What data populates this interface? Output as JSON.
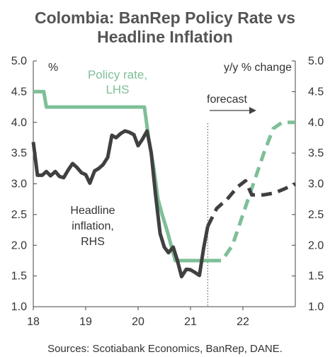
{
  "title_line1": "Colombia: BanRep Policy Rate vs",
  "title_line2": "Headline Inflation",
  "left_unit": "%",
  "right_unit": "y/y % change",
  "policy_label_line1": "Policy rate,",
  "policy_label_line2": "LHS",
  "inflation_label_line1": "Headline",
  "inflation_label_line2": "inflation,",
  "inflation_label_line3": "RHS",
  "forecast_label": "forecast",
  "source": "Sources: Scotiabank Economics, BanRep, DANE.",
  "colors": {
    "policy": "#7ebf98",
    "inflation": "#404040"
  },
  "chart_data": {
    "type": "line",
    "x_ticks": [
      "18",
      "19",
      "20",
      "21",
      "22"
    ],
    "x_tick_values": [
      2018,
      2019,
      2020,
      2021,
      2022
    ],
    "xlim": [
      2018,
      2023
    ],
    "y_left_ticks": [
      "1.0",
      "1.5",
      "2.0",
      "2.5",
      "3.0",
      "3.5",
      "4.0",
      "4.5",
      "5.0"
    ],
    "y_right_ticks": [
      "1.0",
      "1.5",
      "2.0",
      "2.5",
      "3.0",
      "3.5",
      "4.0",
      "4.5",
      "5.0"
    ],
    "ylim_left": [
      1.0,
      5.0
    ],
    "ylim_right": [
      1.0,
      5.0
    ],
    "forecast_start": 2021.33,
    "series": [
      {
        "name": "Policy rate, LHS",
        "axis": "left",
        "style": "solid",
        "x": [
          2018.0,
          2018.2,
          2018.25,
          2020.12,
          2020.2,
          2020.3,
          2020.38,
          2020.46,
          2020.55,
          2020.63,
          2020.71,
          2021.38
        ],
        "y": [
          4.5,
          4.5,
          4.25,
          4.25,
          3.75,
          3.25,
          2.75,
          2.5,
          2.25,
          2.0,
          1.75,
          1.75
        ]
      },
      {
        "name": "Policy rate forecast",
        "axis": "left",
        "style": "dashed",
        "x": [
          2021.38,
          2021.6,
          2021.8,
          2022.0,
          2022.2,
          2022.4,
          2022.58,
          2022.75,
          2023.0
        ],
        "y": [
          1.75,
          1.75,
          2.0,
          2.5,
          3.0,
          3.5,
          3.9,
          4.0,
          4.0
        ]
      },
      {
        "name": "Headline inflation, RHS",
        "axis": "right",
        "style": "solid",
        "x": [
          2018.0,
          2018.08,
          2018.17,
          2018.25,
          2018.33,
          2018.42,
          2018.5,
          2018.58,
          2018.67,
          2018.75,
          2018.83,
          2018.92,
          2019.0,
          2019.08,
          2019.17,
          2019.25,
          2019.33,
          2019.42,
          2019.5,
          2019.58,
          2019.67,
          2019.75,
          2019.83,
          2019.92,
          2020.0,
          2020.08,
          2020.17,
          2020.25,
          2020.33,
          2020.42,
          2020.5,
          2020.58,
          2020.67,
          2020.75,
          2020.83,
          2020.92,
          2021.0,
          2021.08,
          2021.17,
          2021.25,
          2021.33
        ],
        "y": [
          3.68,
          3.14,
          3.14,
          3.2,
          3.13,
          3.2,
          3.12,
          3.1,
          3.23,
          3.33,
          3.27,
          3.18,
          3.15,
          3.01,
          3.21,
          3.25,
          3.31,
          3.43,
          3.79,
          3.75,
          3.82,
          3.86,
          3.84,
          3.8,
          3.62,
          3.72,
          3.86,
          3.51,
          2.85,
          2.19,
          1.97,
          1.88,
          1.97,
          1.75,
          1.49,
          1.61,
          1.6,
          1.56,
          1.51,
          1.95,
          2.31
        ]
      },
      {
        "name": "Headline inflation forecast",
        "axis": "right",
        "style": "dashed",
        "x": [
          2021.33,
          2021.5,
          2021.7,
          2021.9,
          2022.05,
          2022.17,
          2022.4,
          2022.6,
          2022.8,
          2023.0
        ],
        "y": [
          2.31,
          2.6,
          2.75,
          2.95,
          3.05,
          2.82,
          2.82,
          2.85,
          2.92,
          3.0
        ]
      }
    ]
  }
}
